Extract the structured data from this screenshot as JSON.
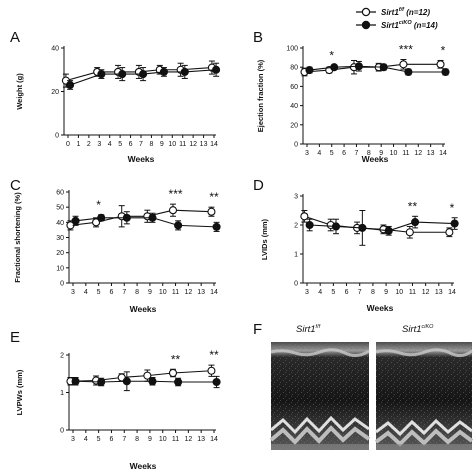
{
  "legend": {
    "wt_name": "Sirt1",
    "wt_sup": "f/f",
    "wt_n": " (n=12)",
    "ko_name": "Sirt1",
    "ko_sup": "ciKO",
    "ko_n": " (n=14)"
  },
  "colors": {
    "wt_fill": "#ffffff",
    "ko_fill": "#111111",
    "stroke": "#111111"
  },
  "panel_f": {
    "label": "F",
    "left_name": "Sirt1",
    "left_sup": "f/f",
    "right_name": "Sirt1",
    "right_sup": "ciKO"
  },
  "chart_data": [
    {
      "panel": "A",
      "type": "line",
      "ylabel": "Weight (g)",
      "xlabel": "Weeks",
      "xlim": [
        0,
        14
      ],
      "xticks": [
        0,
        1,
        2,
        3,
        4,
        5,
        6,
        7,
        8,
        9,
        10,
        11,
        12,
        13,
        14
      ],
      "ylim": [
        0,
        40
      ],
      "yticks": [
        0,
        20,
        40
      ],
      "series": [
        {
          "name": "Sirt1 f/f",
          "x": [
            0,
            3,
            5,
            7,
            9,
            11,
            14
          ],
          "y": [
            25,
            29,
            29,
            29,
            30,
            30,
            31
          ],
          "err": [
            3,
            2,
            3,
            3,
            2,
            3,
            3
          ]
        },
        {
          "name": "Sirt1 ciKO",
          "x": [
            0,
            3,
            5,
            7,
            9,
            11,
            14
          ],
          "y": [
            23,
            28,
            28,
            28,
            29,
            29,
            30
          ],
          "err": [
            2,
            2,
            3,
            3,
            2,
            3,
            3
          ]
        }
      ],
      "annotations": []
    },
    {
      "panel": "B",
      "type": "line",
      "ylabel": "Ejection fraction (%)",
      "xlabel": "Weeks",
      "xlim": [
        3,
        14
      ],
      "xticks": [
        3,
        4,
        5,
        6,
        7,
        8,
        9,
        10,
        11,
        12,
        13,
        14
      ],
      "ylim": [
        0,
        100
      ],
      "yticks": [
        0,
        20,
        40,
        60,
        80,
        100
      ],
      "series": [
        {
          "name": "Sirt1 f/f",
          "x": [
            3,
            5,
            7,
            9,
            11,
            14
          ],
          "y": [
            75,
            77,
            80,
            80,
            83,
            83
          ],
          "err": [
            4,
            3,
            7,
            4,
            5,
            4
          ]
        },
        {
          "name": "Sirt1 ciKO",
          "x": [
            3,
            5,
            7,
            9,
            11,
            14
          ],
          "y": [
            77,
            80,
            81,
            80,
            75,
            75
          ],
          "err": [
            3,
            2,
            5,
            3,
            3,
            3
          ]
        }
      ],
      "annotations": [
        {
          "x": 5,
          "text": "*"
        },
        {
          "x": 11,
          "text": "***"
        },
        {
          "x": 14,
          "text": "*"
        }
      ]
    },
    {
      "panel": "C",
      "type": "line",
      "ylabel": "Fractional shortening (%)",
      "xlabel": "Weeks",
      "xlim": [
        3,
        14
      ],
      "xticks": [
        3,
        4,
        5,
        6,
        7,
        8,
        9,
        10,
        11,
        12,
        13,
        14
      ],
      "ylim": [
        0,
        60
      ],
      "yticks": [
        0,
        10,
        20,
        30,
        40,
        50,
        60
      ],
      "series": [
        {
          "name": "Sirt1 f/f",
          "x": [
            3,
            5,
            7,
            9,
            11,
            14
          ],
          "y": [
            38,
            40,
            44,
            44,
            48,
            47
          ],
          "err": [
            3,
            3,
            7,
            4,
            4,
            3
          ]
        },
        {
          "name": "Sirt1 ciKO",
          "x": [
            3,
            5,
            7,
            9,
            11,
            14
          ],
          "y": [
            41,
            43,
            43,
            43,
            38,
            37
          ],
          "err": [
            3,
            2,
            4,
            3,
            3,
            3
          ]
        }
      ],
      "annotations": [
        {
          "x": 5,
          "text": "*"
        },
        {
          "x": 11,
          "text": "***"
        },
        {
          "x": 14,
          "text": "**"
        }
      ]
    },
    {
      "panel": "D",
      "type": "line",
      "ylabel": "LVIDs (mm)",
      "xlabel": "Weeks",
      "xlim": [
        3,
        14
      ],
      "xticks": [
        3,
        4,
        5,
        6,
        7,
        8,
        9,
        10,
        11,
        12,
        13,
        14
      ],
      "ylim": [
        0,
        3
      ],
      "yticks": [
        0,
        1,
        2,
        3
      ],
      "series": [
        {
          "name": "Sirt1 f/f",
          "x": [
            3,
            5,
            7,
            9,
            11,
            14
          ],
          "y": [
            2.3,
            2.0,
            1.9,
            1.85,
            1.75,
            1.75
          ],
          "err": [
            0.2,
            0.2,
            0.2,
            0.15,
            0.2,
            0.15
          ]
        },
        {
          "name": "Sirt1 ciKO",
          "x": [
            3,
            5,
            7,
            9,
            11,
            14
          ],
          "y": [
            2.0,
            1.95,
            1.9,
            1.8,
            2.1,
            2.05
          ],
          "err": [
            0.2,
            0.25,
            0.6,
            0.15,
            0.2,
            0.2
          ]
        }
      ],
      "annotations": [
        {
          "x": 11,
          "text": "**"
        },
        {
          "x": 14,
          "text": "*"
        }
      ]
    },
    {
      "panel": "E",
      "type": "line",
      "ylabel": "LVPWs (mm)",
      "xlabel": "Weeks",
      "xlim": [
        3,
        14
      ],
      "xticks": [
        3,
        4,
        5,
        6,
        7,
        8,
        9,
        10,
        11,
        12,
        13,
        14
      ],
      "ylim": [
        0,
        2
      ],
      "yticks": [
        0,
        1,
        2
      ],
      "series": [
        {
          "name": "Sirt1 f/f",
          "x": [
            3,
            5,
            7,
            9,
            11,
            14
          ],
          "y": [
            1.3,
            1.32,
            1.4,
            1.45,
            1.52,
            1.58
          ],
          "err": [
            0.1,
            0.12,
            0.1,
            0.15,
            0.1,
            0.15
          ]
        },
        {
          "name": "Sirt1 ciKO",
          "x": [
            3,
            5,
            7,
            9,
            11,
            14
          ],
          "y": [
            1.3,
            1.28,
            1.3,
            1.3,
            1.28,
            1.28
          ],
          "err": [
            0.1,
            0.1,
            0.25,
            0.1,
            0.1,
            0.15
          ]
        }
      ],
      "annotations": [
        {
          "x": 11,
          "text": "**"
        },
        {
          "x": 14,
          "text": "**"
        }
      ]
    }
  ]
}
